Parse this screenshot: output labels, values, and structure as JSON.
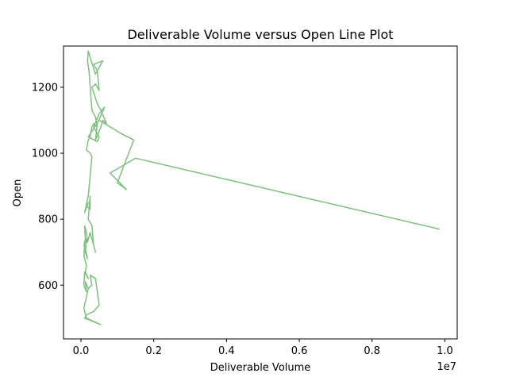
{
  "chart_data": {
    "type": "line",
    "title": "Deliverable Volume versus Open Line Plot",
    "xlabel": "Deliverable Volume",
    "ylabel": "Open",
    "x_offset_label": "1e7",
    "xlim": [
      -480000,
      10340000
    ],
    "ylim": [
      437,
      1325
    ],
    "x_ticks": [
      0,
      2000000,
      4000000,
      6000000,
      8000000,
      10000000
    ],
    "x_tick_labels": [
      "0.0",
      "0.2",
      "0.4",
      "0.6",
      "0.8",
      "1.0"
    ],
    "y_ticks": [
      600,
      800,
      1000,
      1200
    ],
    "y_tick_labels": [
      "600",
      "800",
      "1000",
      "1200"
    ],
    "grid": false,
    "line_color": "#7fbf7f",
    "series": [
      {
        "name": "",
        "x": [
          9850000,
          1500000,
          800000,
          1250000,
          1000000,
          1450000,
          1100000,
          500000,
          200000,
          450000,
          500000,
          350000,
          500000,
          650000,
          450000,
          400000,
          550000,
          600000,
          700000,
          550000,
          450000,
          300000,
          400000,
          500000,
          450000,
          350000,
          600000,
          500000,
          400000,
          250000,
          200000,
          180000,
          220000,
          300000,
          400000,
          450000,
          350000,
          300000,
          250000,
          200000,
          150000,
          250000,
          300000,
          200000,
          100000,
          200000,
          150000,
          250000,
          250000,
          200000,
          300000,
          350000,
          400000,
          250000,
          180000,
          150000,
          100000,
          120000,
          80000,
          150000,
          120000,
          180000,
          100000,
          80000,
          150000,
          120000,
          200000,
          100000,
          80000,
          150000,
          120000,
          200000,
          300000,
          250000,
          400000,
          500000,
          350000,
          150000,
          100000,
          550000,
          150000,
          80000,
          200000
        ],
        "y": [
          770,
          985,
          940,
          890,
          910,
          1040,
          1060,
          1100,
          1050,
          1035,
          1050,
          1080,
          1120,
          1140,
          1090,
          1040,
          1080,
          1100,
          1090,
          1130,
          1150,
          1200,
          1210,
          1190,
          1250,
          1270,
          1280,
          1260,
          1240,
          1290,
          1310,
          1280,
          1250,
          1130,
          1110,
          1080,
          1090,
          1080,
          1050,
          1040,
          1010,
          1000,
          990,
          870,
          820,
          850,
          840,
          830,
          870,
          800,
          780,
          720,
          700,
          760,
          730,
          760,
          780,
          740,
          720,
          740,
          700,
          680,
          720,
          690,
          660,
          640,
          620,
          640,
          600,
          580,
          610,
          590,
          600,
          630,
          620,
          540,
          520,
          510,
          500,
          480,
          500,
          530,
          590
        ]
      }
    ]
  }
}
